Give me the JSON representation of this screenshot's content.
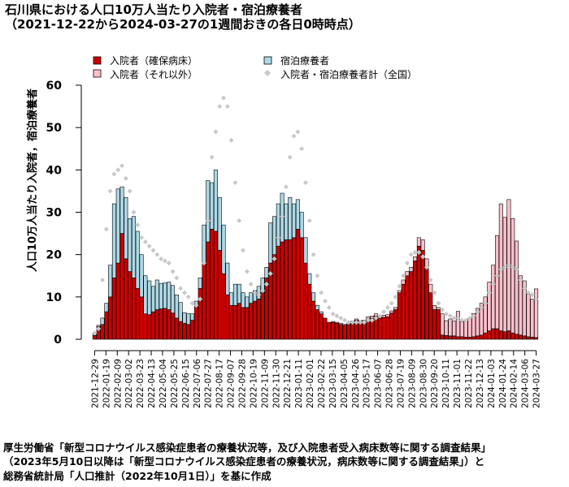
{
  "title": "石川県における人口10万人当たり入院者・宿泊療養者",
  "subtitle": "（2021-12-22から2024-03-27の1週間おきの各日0時時点）",
  "source_lines": [
    "厚生労働省「新型コロナウイルス感染症患者の療養状況等，及び入院患者受入病床数等に関する調査結果」",
    "（2023年5月10日以降は「新型コロナウイルス感染症患者の療養状況，病床数等に関する調査結果」）と",
    "総務省統計局「人口推計（2022年10月1日）」を基に作成"
  ],
  "colors": {
    "hosp_confirmed": "#cc0000",
    "hosp_other": "#ffc0cb",
    "lodging": "#add8e6",
    "national_total": "#c8c8c8"
  },
  "chart_data": {
    "type": "bar",
    "stacked": true,
    "ylabel": "人口10万人当たり入院者，宿泊療養者",
    "ylim": [
      0,
      60
    ],
    "yticks": [
      0,
      10,
      20,
      30,
      40,
      50,
      60
    ],
    "xtick_labels": [
      "2021-12-29",
      "2022-01-19",
      "2022-02-09",
      "2022-03-02",
      "2022-03-23",
      "2022-04-13",
      "2022-05-04",
      "2022-05-25",
      "2022-06-15",
      "2022-07-06",
      "2022-07-27",
      "2022-08-17",
      "2022-09-07",
      "2022-09-28",
      "2022-10-19",
      "2022-11-09",
      "2022-11-30",
      "2022-12-21",
      "2023-01-11",
      "2023-02-01",
      "2023-02-22",
      "2023-03-15",
      "2023-04-05",
      "2023-04-26",
      "2023-05-17",
      "2023-06-07",
      "2023-06-28",
      "2023-07-19",
      "2023-08-09",
      "2023-08-30",
      "2023-09-20",
      "2023-10-11",
      "2023-11-01",
      "2023-11-22",
      "2023-12-13",
      "2024-01-03",
      "2024-01-24",
      "2024-02-14",
      "2024-03-06",
      "2024-03-27"
    ],
    "legend": [
      "入院者（確保病床）",
      "宿泊療養者",
      "入院者（それ以外）",
      "入院者・宿泊療養者計（全国）"
    ],
    "legend_position": "top",
    "first_date": "2021-12-22",
    "last_date": "2024-03-27",
    "interval_days": 7,
    "hosp_confirmed": [
      0.9,
      3.0,
      3.5,
      6.5,
      10.0,
      14.5,
      18.0,
      25.0,
      19.0,
      16.0,
      14.5,
      12.0,
      10.0,
      6.0,
      5.8,
      6.5,
      7.0,
      7.2,
      7.3,
      7.0,
      6.2,
      5.0,
      4.2,
      3.8,
      3.5,
      4.5,
      8.0,
      12.0,
      18.0,
      23.0,
      26.0,
      25.5,
      21.0,
      15.5,
      10.5,
      8.0,
      8.0,
      8.5,
      7.5,
      7.5,
      8.5,
      9.0,
      9.5,
      11.0,
      14.5,
      18.0,
      20.0,
      22.0,
      23.0,
      23.5,
      23.5,
      24.0,
      26.0,
      24.0,
      18.0,
      13.0,
      9.0,
      7.0,
      6.0,
      5.0,
      4.0,
      4.0,
      3.8,
      3.5,
      3.3,
      3.5,
      4.0,
      4.5,
      4.2,
      4.0,
      4.8,
      5.0,
      5.5,
      5.0,
      5.2,
      5.3,
      6.2,
      7.0,
      11.0,
      13.0,
      15.0,
      16.0,
      18.5,
      22.0,
      21.0,
      17.0,
      11.0,
      7.0,
      7.0,
      1.0,
      0.9,
      0.8,
      0.8,
      0.6,
      0.6,
      0.5,
      0.5,
      0.6,
      0.8,
      1.0,
      1.5,
      2.0,
      2.5,
      2.5,
      2.0,
      1.8,
      2.0,
      1.5,
      1.2,
      1.0,
      0.8,
      0.6,
      0.5,
      0.4
    ],
    "hosp_other": [
      0,
      0,
      0,
      0,
      0,
      0,
      0,
      0,
      0,
      0,
      0,
      0,
      0,
      0,
      0,
      0,
      0,
      0,
      0,
      0,
      0,
      0,
      0,
      0,
      0,
      0,
      0,
      0,
      0,
      0,
      0,
      0,
      0,
      0,
      0,
      0,
      0,
      0,
      0,
      0,
      0,
      0,
      0,
      0,
      0,
      0,
      0,
      0,
      0,
      0,
      0,
      0,
      0,
      0,
      0,
      0,
      0,
      0,
      0,
      0,
      0,
      0.2,
      0.2,
      0.3,
      0.2,
      0.3,
      0.3,
      0.3,
      0.2,
      0.5,
      0.5,
      0.5,
      0.5,
      0.5,
      0.5,
      0.5,
      0.5,
      0.5,
      0.5,
      1.0,
      1.0,
      1.0,
      1.0,
      2.0,
      2.5,
      2.0,
      2.0,
      1.0,
      0.5,
      5.0,
      3.5,
      4.0,
      3.5,
      6.0,
      3.5,
      4.0,
      4.5,
      5.5,
      6.5,
      7.5,
      8.5,
      11.5,
      15.0,
      22.0,
      30.0,
      27.0,
      31.0,
      27.0,
      22.0,
      14.0,
      13.0,
      10.0,
      9.0,
      11.5
    ],
    "lodging": [
      0.5,
      0.3,
      1.5,
      2.0,
      7.5,
      17.5,
      17.5,
      11.0,
      14.5,
      12.5,
      14.5,
      13.5,
      10.0,
      9.0,
      8.0,
      6.0,
      7.0,
      6.0,
      6.0,
      6.5,
      6.5,
      5.5,
      4.5,
      2.5,
      2.5,
      1.5,
      1.0,
      2.5,
      9.0,
      14.5,
      11.0,
      14.5,
      12.5,
      11.5,
      7.5,
      3.0,
      5.0,
      4.5,
      3.5,
      2.5,
      2.5,
      2.5,
      3.0,
      3.5,
      2.5,
      9.5,
      9.0,
      10.0,
      11.5,
      8.5,
      10.0,
      8.0,
      7.0,
      6.0,
      6.0,
      2.5,
      2.0,
      1.0,
      0.5,
      0,
      0,
      0,
      0,
      0,
      0,
      0,
      0,
      0,
      0,
      0,
      0,
      0,
      0,
      0,
      0,
      0,
      0,
      0,
      0,
      0,
      0,
      0,
      0,
      0,
      0,
      0,
      0,
      0,
      0,
      0,
      0,
      0,
      0,
      0,
      0,
      0,
      0,
      0,
      0,
      0,
      0,
      0,
      0,
      0,
      0,
      0,
      0,
      0,
      0,
      0,
      0,
      0,
      0,
      0
    ],
    "national_total": [
      1.5,
      2.5,
      14.0,
      26.0,
      35.0,
      39.0,
      40.0,
      41.0,
      38.0,
      35.0,
      30.0,
      27.0,
      24.0,
      23.0,
      22.0,
      21.0,
      20.0,
      19.0,
      18.5,
      18.0,
      16.0,
      14.5,
      12.0,
      11.0,
      10.0,
      8.5,
      8.0,
      9.5,
      18.0,
      28.0,
      43.0,
      49.0,
      55.0,
      57.0,
      55.0,
      47.0,
      37.0,
      28.0,
      21.0,
      16.0,
      13.0,
      11.0,
      10.5,
      11.5,
      13.0,
      15.5,
      19.0,
      24.0,
      29.0,
      36.0,
      43.0,
      48.0,
      49.0,
      45.0,
      37.0,
      28.0,
      20.0,
      15.0,
      11.0,
      9.0,
      7.5,
      6.0,
      5.5,
      5.0,
      4.5,
      4.0,
      4.0,
      4.0,
      4.0,
      4.0,
      4.5,
      4.5,
      5.0,
      5.5,
      6.5,
      7.5,
      8.5,
      10.0,
      12.5,
      15.0,
      18.0,
      20.0,
      20.5,
      20.5,
      19.5,
      17.0,
      14.0,
      11.0,
      8.5,
      7.0,
      6.0,
      5.5,
      5.0,
      5.0,
      4.5,
      4.5,
      5.0,
      5.5,
      6.5,
      7.5,
      8.5,
      11.0,
      13.0,
      15.0,
      16.5,
      17.0,
      17.5,
      17.0,
      16.5,
      14.0,
      12.0,
      11.0,
      10.5,
      9.5
    ]
  }
}
